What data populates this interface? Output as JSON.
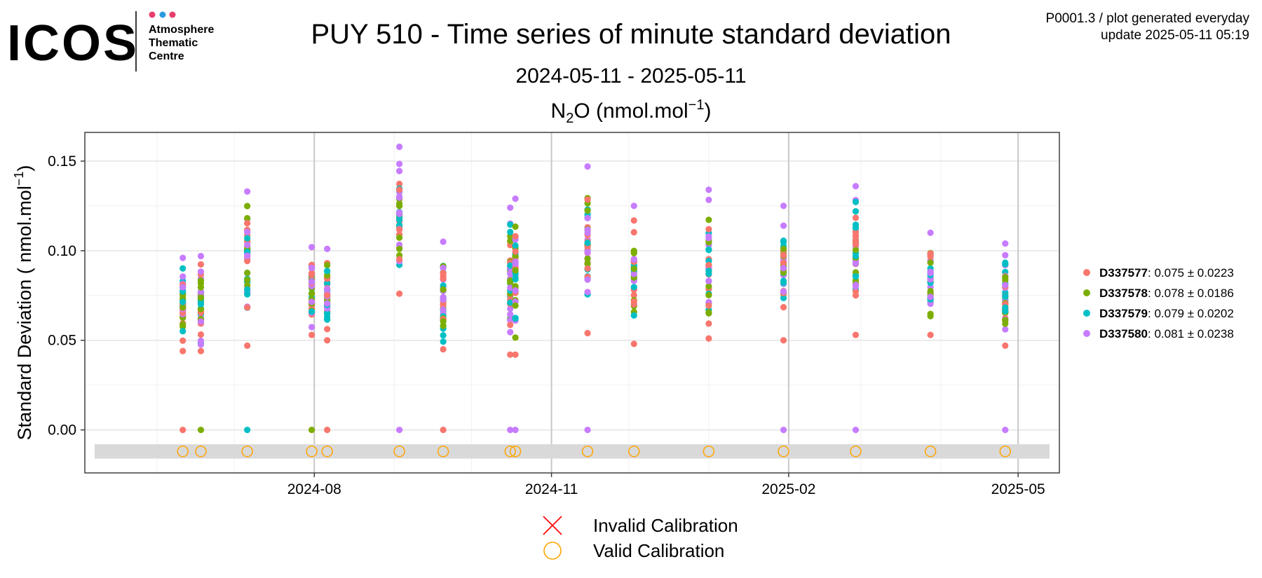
{
  "logo": {
    "brand": "ICOS",
    "line1": "Atmosphere",
    "line2": "Thematic",
    "line3": "Centre",
    "dot_colors": [
      "#e83e6c",
      "#2b9be0",
      "#e83e6c"
    ]
  },
  "header": {
    "title": "PUY 510 - Time series of minute standard deviation",
    "date_range": "2024-05-11 - 2025-05-11",
    "meta_line1": "P0001.3 / plot generated everyday",
    "meta_line2": "update  2025-05-11 05:19"
  },
  "chart_data": {
    "type": "scatter",
    "title": "N2O (nmol.mol-1)",
    "title_parts": {
      "base": "N",
      "sub": "2",
      "rest": "O (nmol.mol",
      "sup": "−1",
      "close": ")"
    },
    "ylabel_parts": {
      "base": "Standard Deviation ( nmol.mol",
      "sup": "−1",
      "close": ")"
    },
    "xlabel": "",
    "x_range": [
      "2024-05-04",
      "2025-05-17"
    ],
    "ylim": [
      -0.024,
      0.166
    ],
    "y_ticks": [
      0.0,
      0.05,
      0.1,
      0.15
    ],
    "y_tick_labels": [
      "0.00",
      "0.05",
      "0.10",
      "0.15"
    ],
    "x_ticks": [
      "2024-08-01",
      "2024-11-01",
      "2025-02-01",
      "2025-05-01"
    ],
    "x_tick_labels": [
      "2024-08",
      "2024-11",
      "2025-02",
      "2025-05"
    ],
    "grid": true,
    "legend_position": "right",
    "sessions": [
      {
        "date": "2024-06-11",
        "min": 0.044,
        "max": 0.096
      },
      {
        "date": "2024-06-18",
        "min": 0.044,
        "max": 0.097
      },
      {
        "date": "2024-07-06",
        "min": 0.047,
        "max": 0.133
      },
      {
        "date": "2024-07-31",
        "min": 0.053,
        "max": 0.102
      },
      {
        "date": "2024-08-06",
        "min": 0.05,
        "max": 0.101
      },
      {
        "date": "2024-09-03",
        "min": 0.076,
        "max": 0.158
      },
      {
        "date": "2024-09-20",
        "min": 0.045,
        "max": 0.105
      },
      {
        "date": "2024-10-16",
        "min": 0.042,
        "max": 0.124
      },
      {
        "date": "2024-10-18",
        "min": 0.042,
        "max": 0.129
      },
      {
        "date": "2024-11-15",
        "min": 0.054,
        "max": 0.147
      },
      {
        "date": "2024-12-03",
        "min": 0.048,
        "max": 0.125
      },
      {
        "date": "2025-01-01",
        "min": 0.051,
        "max": 0.134
      },
      {
        "date": "2025-01-30",
        "min": 0.05,
        "max": 0.125
      },
      {
        "date": "2025-02-27",
        "min": 0.053,
        "max": 0.136
      },
      {
        "date": "2025-03-28",
        "min": 0.053,
        "max": 0.11
      },
      {
        "date": "2025-04-26",
        "min": 0.047,
        "max": 0.104
      }
    ],
    "zero_points": [
      {
        "date": "2024-06-11",
        "series": "D337577"
      },
      {
        "date": "2024-06-18",
        "series": "D337578"
      },
      {
        "date": "2024-07-06",
        "series": "D337579"
      },
      {
        "date": "2024-07-31",
        "series": "D337578"
      },
      {
        "date": "2024-08-06",
        "series": "D337577"
      },
      {
        "date": "2024-09-03",
        "series": "D337580"
      },
      {
        "date": "2024-09-20",
        "series": "D337577"
      },
      {
        "date": "2024-10-16",
        "series": "D337580"
      },
      {
        "date": "2024-10-18",
        "series": "D337580"
      },
      {
        "date": "2024-11-15",
        "series": "D337580"
      },
      {
        "date": "2025-01-30",
        "series": "D337580"
      },
      {
        "date": "2025-02-27",
        "series": "D337580"
      },
      {
        "date": "2025-04-26",
        "series": "D337580"
      }
    ],
    "calibration_band": {
      "ymin": -0.016,
      "ymax": -0.008,
      "color": "#d9d9d9"
    },
    "valid_calibrations": {
      "y": -0.012,
      "dates": [
        "2024-06-11",
        "2024-06-18",
        "2024-07-06",
        "2024-07-31",
        "2024-08-06",
        "2024-09-03",
        "2024-09-20",
        "2024-10-16",
        "2024-10-18",
        "2024-11-15",
        "2024-12-03",
        "2025-01-01",
        "2025-01-30",
        "2025-02-27",
        "2025-03-28",
        "2025-04-26"
      ]
    },
    "invalid_calibrations": {
      "dates": []
    },
    "series": [
      {
        "name": "D337577",
        "stats": ": 0.075 ± 0.0223",
        "mean": 0.075,
        "sd": 0.0223,
        "color": "#f8766d"
      },
      {
        "name": "D337578",
        "stats": ": 0.078 ± 0.0186",
        "mean": 0.078,
        "sd": 0.0186,
        "color": "#7cae00"
      },
      {
        "name": "D337579",
        "stats": ": 0.079 ± 0.0202",
        "mean": 0.079,
        "sd": 0.0202,
        "color": "#00bfc4"
      },
      {
        "name": "D337580",
        "stats": ": 0.081 ± 0.0238",
        "mean": 0.081,
        "sd": 0.0238,
        "color": "#c77cff"
      }
    ],
    "calibration_legend": [
      {
        "label": "Invalid Calibration",
        "symbol": "cross",
        "color": "#ff0000"
      },
      {
        "label": "Valid Calibration",
        "symbol": "circle",
        "color": "#ffa500"
      }
    ]
  }
}
